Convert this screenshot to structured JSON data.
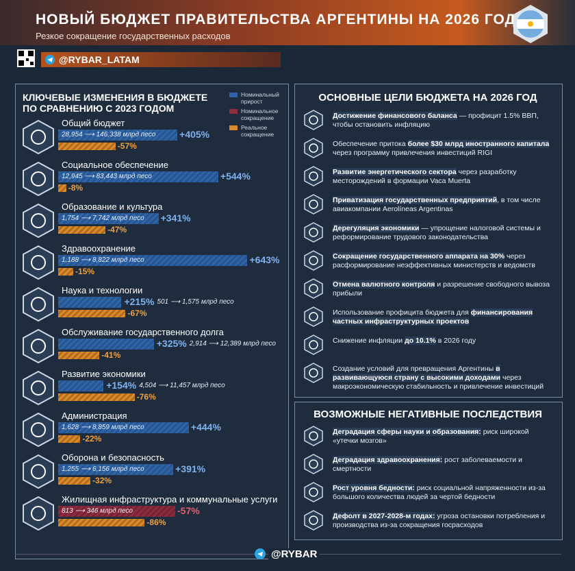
{
  "header": {
    "title": "НОВЫЙ БЮДЖЕТ ПРАВИТЕЛЬСТВА АРГЕНТИНЫ НА 2026 ГОД",
    "subtitle": "Резкое сокращение государственных расходов",
    "handle": "@RYBAR_LATAM"
  },
  "left": {
    "title": "КЛЮЧЕВЫЕ ИЗМЕНЕНИЯ В БЮДЖЕТЕ ПО СРАВНЕНИЮ С 2023 ГОДОМ",
    "legend": [
      {
        "name": "Номинальный прирост",
        "color": "#2f64a8"
      },
      {
        "name": "Номинальное сокращение",
        "color": "#8e2c3f"
      },
      {
        "name": "Реальное сокращение",
        "color": "#d98a2b"
      }
    ],
    "unit": "млрд песо",
    "items": [
      {
        "name": "Общий бюджет",
        "from": "28,954",
        "to": "146,338",
        "nominal": 405,
        "nominal_label": "+405%",
        "real": -57,
        "real_label": "-57%"
      },
      {
        "name": "Социальное обеспечение",
        "from": "12,945",
        "to": "83,443",
        "nominal": 544,
        "nominal_label": "+544%",
        "real": -8,
        "real_label": "-8%"
      },
      {
        "name": "Образование и культура",
        "from": "1,754",
        "to": "7,742",
        "nominal": 341,
        "nominal_label": "+341%",
        "real": -47,
        "real_label": "-47%"
      },
      {
        "name": "Здравоохранение",
        "from": "1,188",
        "to": "8,822",
        "nominal": 643,
        "nominal_label": "+643%",
        "real": -15,
        "real_label": "-15%"
      },
      {
        "name": "Наука и технологии",
        "from": "501",
        "to": "1,575",
        "nominal": 215,
        "nominal_label": "+215%",
        "real": -67,
        "real_label": "-67%"
      },
      {
        "name": "Обслуживание государственного долга",
        "from": "2,914",
        "to": "12,389",
        "nominal": 325,
        "nominal_label": "+325%",
        "real": -41,
        "real_label": "-41%"
      },
      {
        "name": "Развитие экономики",
        "from": "4,504",
        "to": "11,457",
        "nominal": 154,
        "nominal_label": "+154%",
        "real": -76,
        "real_label": "-76%"
      },
      {
        "name": "Администрация",
        "from": "1,628",
        "to": "8,859",
        "nominal": 444,
        "nominal_label": "+444%",
        "real": -22,
        "real_label": "-22%"
      },
      {
        "name": "Оборона и безопасность",
        "from": "1,255",
        "to": "6,156",
        "nominal": 391,
        "nominal_label": "+391%",
        "real": -32,
        "real_label": "-32%"
      },
      {
        "name": "Жилищная инфраструктура и коммунальные услуги",
        "from": "813",
        "to": "346",
        "nominal": -57,
        "nominal_label": "-57%",
        "real": -86,
        "real_label": "-86%"
      }
    ]
  },
  "right": {
    "title": "ОСНОВНЫЕ ЦЕЛИ БЮДЖЕТА НА 2026 ГОД",
    "goals": [
      [
        {
          "t": "Достижение финансового баланса",
          "b": true
        },
        {
          "t": " — профицит 1.5% ВВП, чтобы остановить инфляцию"
        }
      ],
      [
        {
          "t": "Обеспечение притока "
        },
        {
          "t": "более $30 млрд иностранного капитала",
          "b": true
        },
        {
          "t": " через программу привлечения инвестиций RIGI"
        }
      ],
      [
        {
          "t": "Развитие энергетического сектора",
          "b": true
        },
        {
          "t": " через разработку месторождений в формации Vaca Muerta"
        }
      ],
      [
        {
          "t": "Приватизация государственных предприятий",
          "b": true
        },
        {
          "t": ", в том числе авиакомпании Aerolíneas Argentinas"
        }
      ],
      [
        {
          "t": "Дерегуляция экономики",
          "b": true
        },
        {
          "t": " — упрощение налоговой системы и реформирование трудового законодательства"
        }
      ],
      [
        {
          "t": "Сокращение государственного аппарата на 30%",
          "b": true
        },
        {
          "t": " через расформирование неэффективных министерств и ведомств"
        }
      ],
      [
        {
          "t": "Отмена валютного контроля",
          "b": true
        },
        {
          "t": " и разрешение свободного вывоза прибыли"
        }
      ],
      [
        {
          "t": "Использование профицита бюджета для "
        },
        {
          "t": "финансирования частных инфраструктурных проектов",
          "b": true
        }
      ],
      [
        {
          "t": "Снижение инфляции "
        },
        {
          "t": "до 10.1%",
          "b": true
        },
        {
          "t": " в 2026 году"
        }
      ],
      [
        {
          "t": "Создание условий для превращения Аргентины "
        },
        {
          "t": "в развивающуюся страну с высокими доходами",
          "b": true
        },
        {
          "t": " через макроэкономическую стабильность и привлечение инвестиций"
        }
      ]
    ]
  },
  "negatives": {
    "title": "ВОЗМОЖНЫЕ НЕГАТИВНЫЕ ПОСЛЕДСТВИЯ",
    "items": [
      [
        {
          "t": "Деградация сферы науки и образования:",
          "b": true
        },
        {
          "t": " риск широкой «утечки мозгов»"
        }
      ],
      [
        {
          "t": "Деградация здравоохранения:",
          "b": true
        },
        {
          "t": " рост заболеваемости и смертности"
        }
      ],
      [
        {
          "t": "Рост уровня бедности:",
          "b": true
        },
        {
          "t": " риск социальной напряженности из-за большого количества людей за чертой бедности"
        }
      ],
      [
        {
          "t": "Дефолт в 2027-2028-м годах:",
          "b": true
        },
        {
          "t": " угроза остановки потребления и производства из-за сокращения госрасходов"
        }
      ]
    ]
  },
  "footer": {
    "handle": "@RYBAR"
  }
}
